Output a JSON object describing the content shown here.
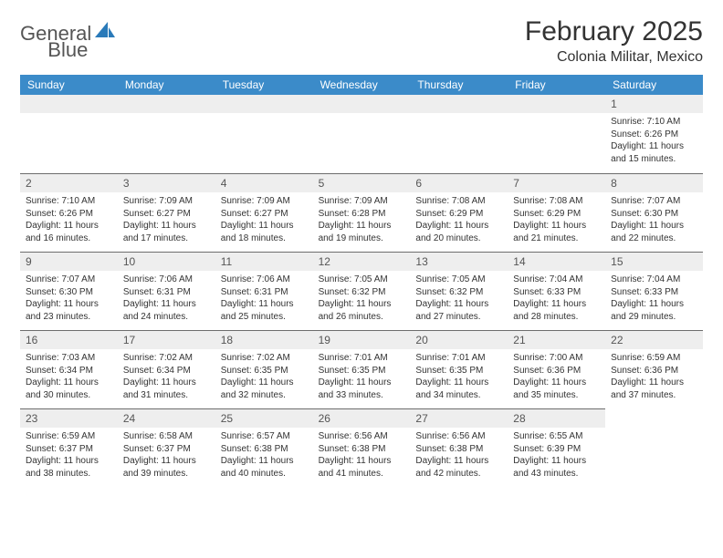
{
  "logo": {
    "word1": "General",
    "word2": "Blue",
    "color_gray": "#555555",
    "color_blue": "#2a7ab9"
  },
  "header": {
    "title": "February 2025",
    "location": "Colonia Militar, Mexico"
  },
  "colors": {
    "header_bar": "#3b8bc9",
    "header_text": "#ffffff",
    "daynum_bg": "#eeeeee",
    "daynum_border": "#6d6d6d",
    "body_text": "#333333"
  },
  "dayNames": [
    "Sunday",
    "Monday",
    "Tuesday",
    "Wednesday",
    "Thursday",
    "Friday",
    "Saturday"
  ],
  "weeks": [
    [
      null,
      null,
      null,
      null,
      null,
      null,
      {
        "n": "1",
        "sunrise": "Sunrise: 7:10 AM",
        "sunset": "Sunset: 6:26 PM",
        "daylight": "Daylight: 11 hours and 15 minutes."
      }
    ],
    [
      {
        "n": "2",
        "sunrise": "Sunrise: 7:10 AM",
        "sunset": "Sunset: 6:26 PM",
        "daylight": "Daylight: 11 hours and 16 minutes."
      },
      {
        "n": "3",
        "sunrise": "Sunrise: 7:09 AM",
        "sunset": "Sunset: 6:27 PM",
        "daylight": "Daylight: 11 hours and 17 minutes."
      },
      {
        "n": "4",
        "sunrise": "Sunrise: 7:09 AM",
        "sunset": "Sunset: 6:27 PM",
        "daylight": "Daylight: 11 hours and 18 minutes."
      },
      {
        "n": "5",
        "sunrise": "Sunrise: 7:09 AM",
        "sunset": "Sunset: 6:28 PM",
        "daylight": "Daylight: 11 hours and 19 minutes."
      },
      {
        "n": "6",
        "sunrise": "Sunrise: 7:08 AM",
        "sunset": "Sunset: 6:29 PM",
        "daylight": "Daylight: 11 hours and 20 minutes."
      },
      {
        "n": "7",
        "sunrise": "Sunrise: 7:08 AM",
        "sunset": "Sunset: 6:29 PM",
        "daylight": "Daylight: 11 hours and 21 minutes."
      },
      {
        "n": "8",
        "sunrise": "Sunrise: 7:07 AM",
        "sunset": "Sunset: 6:30 PM",
        "daylight": "Daylight: 11 hours and 22 minutes."
      }
    ],
    [
      {
        "n": "9",
        "sunrise": "Sunrise: 7:07 AM",
        "sunset": "Sunset: 6:30 PM",
        "daylight": "Daylight: 11 hours and 23 minutes."
      },
      {
        "n": "10",
        "sunrise": "Sunrise: 7:06 AM",
        "sunset": "Sunset: 6:31 PM",
        "daylight": "Daylight: 11 hours and 24 minutes."
      },
      {
        "n": "11",
        "sunrise": "Sunrise: 7:06 AM",
        "sunset": "Sunset: 6:31 PM",
        "daylight": "Daylight: 11 hours and 25 minutes."
      },
      {
        "n": "12",
        "sunrise": "Sunrise: 7:05 AM",
        "sunset": "Sunset: 6:32 PM",
        "daylight": "Daylight: 11 hours and 26 minutes."
      },
      {
        "n": "13",
        "sunrise": "Sunrise: 7:05 AM",
        "sunset": "Sunset: 6:32 PM",
        "daylight": "Daylight: 11 hours and 27 minutes."
      },
      {
        "n": "14",
        "sunrise": "Sunrise: 7:04 AM",
        "sunset": "Sunset: 6:33 PM",
        "daylight": "Daylight: 11 hours and 28 minutes."
      },
      {
        "n": "15",
        "sunrise": "Sunrise: 7:04 AM",
        "sunset": "Sunset: 6:33 PM",
        "daylight": "Daylight: 11 hours and 29 minutes."
      }
    ],
    [
      {
        "n": "16",
        "sunrise": "Sunrise: 7:03 AM",
        "sunset": "Sunset: 6:34 PM",
        "daylight": "Daylight: 11 hours and 30 minutes."
      },
      {
        "n": "17",
        "sunrise": "Sunrise: 7:02 AM",
        "sunset": "Sunset: 6:34 PM",
        "daylight": "Daylight: 11 hours and 31 minutes."
      },
      {
        "n": "18",
        "sunrise": "Sunrise: 7:02 AM",
        "sunset": "Sunset: 6:35 PM",
        "daylight": "Daylight: 11 hours and 32 minutes."
      },
      {
        "n": "19",
        "sunrise": "Sunrise: 7:01 AM",
        "sunset": "Sunset: 6:35 PM",
        "daylight": "Daylight: 11 hours and 33 minutes."
      },
      {
        "n": "20",
        "sunrise": "Sunrise: 7:01 AM",
        "sunset": "Sunset: 6:35 PM",
        "daylight": "Daylight: 11 hours and 34 minutes."
      },
      {
        "n": "21",
        "sunrise": "Sunrise: 7:00 AM",
        "sunset": "Sunset: 6:36 PM",
        "daylight": "Daylight: 11 hours and 35 minutes."
      },
      {
        "n": "22",
        "sunrise": "Sunrise: 6:59 AM",
        "sunset": "Sunset: 6:36 PM",
        "daylight": "Daylight: 11 hours and 37 minutes."
      }
    ],
    [
      {
        "n": "23",
        "sunrise": "Sunrise: 6:59 AM",
        "sunset": "Sunset: 6:37 PM",
        "daylight": "Daylight: 11 hours and 38 minutes."
      },
      {
        "n": "24",
        "sunrise": "Sunrise: 6:58 AM",
        "sunset": "Sunset: 6:37 PM",
        "daylight": "Daylight: 11 hours and 39 minutes."
      },
      {
        "n": "25",
        "sunrise": "Sunrise: 6:57 AM",
        "sunset": "Sunset: 6:38 PM",
        "daylight": "Daylight: 11 hours and 40 minutes."
      },
      {
        "n": "26",
        "sunrise": "Sunrise: 6:56 AM",
        "sunset": "Sunset: 6:38 PM",
        "daylight": "Daylight: 11 hours and 41 minutes."
      },
      {
        "n": "27",
        "sunrise": "Sunrise: 6:56 AM",
        "sunset": "Sunset: 6:38 PM",
        "daylight": "Daylight: 11 hours and 42 minutes."
      },
      {
        "n": "28",
        "sunrise": "Sunrise: 6:55 AM",
        "sunset": "Sunset: 6:39 PM",
        "daylight": "Daylight: 11 hours and 43 minutes."
      },
      null
    ]
  ]
}
